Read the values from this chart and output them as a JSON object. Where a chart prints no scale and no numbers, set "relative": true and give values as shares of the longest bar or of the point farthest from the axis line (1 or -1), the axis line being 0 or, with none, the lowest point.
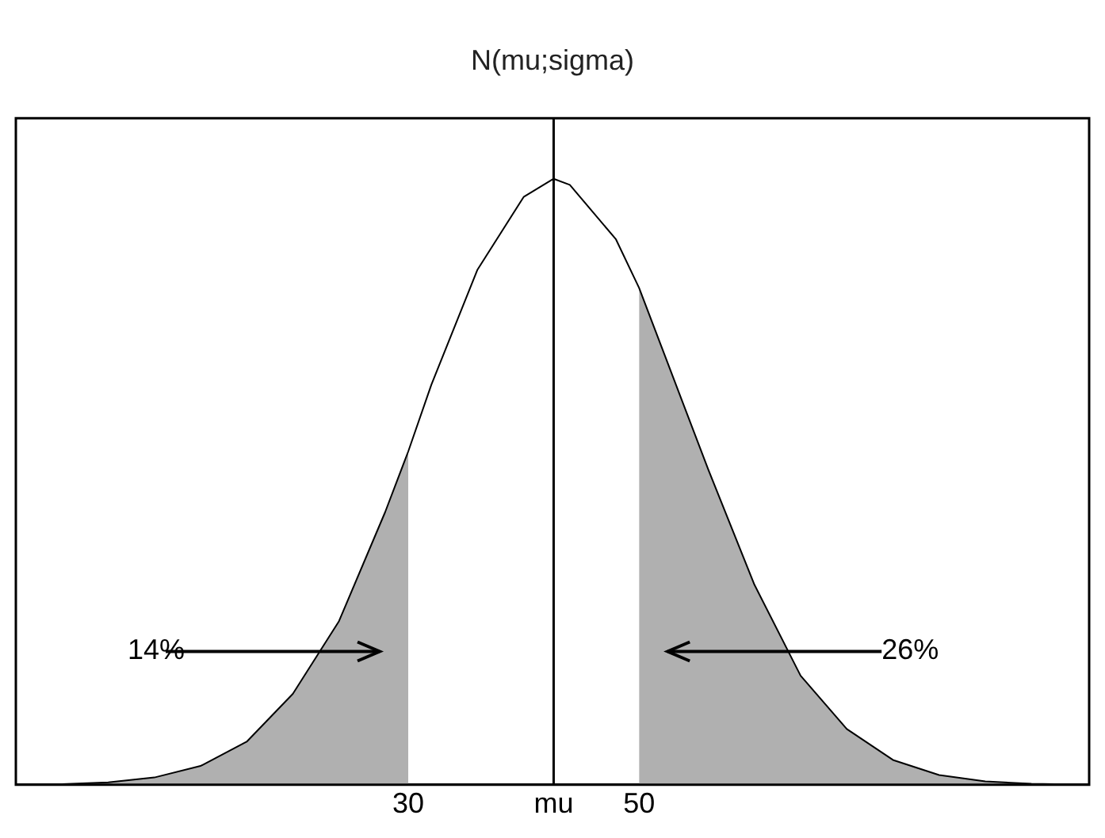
{
  "chart_data": {
    "type": "line",
    "title": "N(mu;sigma)",
    "relative": true,
    "x": [
      -4,
      0,
      4,
      8,
      12,
      16,
      20,
      24,
      28,
      30,
      32,
      36,
      40,
      42.6,
      44,
      48,
      50,
      52,
      56,
      60,
      64,
      68,
      72,
      76,
      80,
      84,
      88
    ],
    "series": [
      {
        "type": "line",
        "color": "#000000",
        "values": [
          0.0003,
          0.0012,
          0.0039,
          0.012,
          0.031,
          0.071,
          0.15,
          0.27,
          0.45,
          0.55,
          0.66,
          0.85,
          0.97,
          1,
          0.99,
          0.9,
          0.82,
          0.72,
          0.52,
          0.33,
          0.18,
          0.092,
          0.041,
          0.016,
          0.0056,
          0.0017,
          0.0005
        ]
      },
      {
        "type": "area",
        "color": "#b0b0b0",
        "values": [
          0.0003,
          0.0012,
          0.0039,
          0.012,
          0.031,
          0.071,
          0.15,
          0.27,
          0.45,
          0.55,
          null,
          null,
          null,
          null,
          null,
          null,
          null,
          null,
          null,
          null,
          null,
          null,
          null,
          null,
          null,
          null,
          null
        ]
      },
      {
        "type": "area",
        "color": "#b0b0b0",
        "values": [
          null,
          null,
          null,
          null,
          null,
          null,
          null,
          null,
          null,
          null,
          null,
          null,
          null,
          null,
          null,
          null,
          0.82,
          0.72,
          0.52,
          0.33,
          0.18,
          0.092,
          0.041,
          0.016,
          0.0056,
          0.0017,
          0.0005
        ]
      }
    ],
    "xlim": [
      -4,
      89
    ],
    "xticks": [
      30,
      {
        "value": 42.6,
        "label": "mu"
      },
      50
    ],
    "ref_lines": [
      {
        "axis": "x",
        "value": 42.6,
        "color": "#000000"
      }
    ],
    "annotations": [
      "14%",
      "26%"
    ],
    "grid": false,
    "legend": false
  }
}
